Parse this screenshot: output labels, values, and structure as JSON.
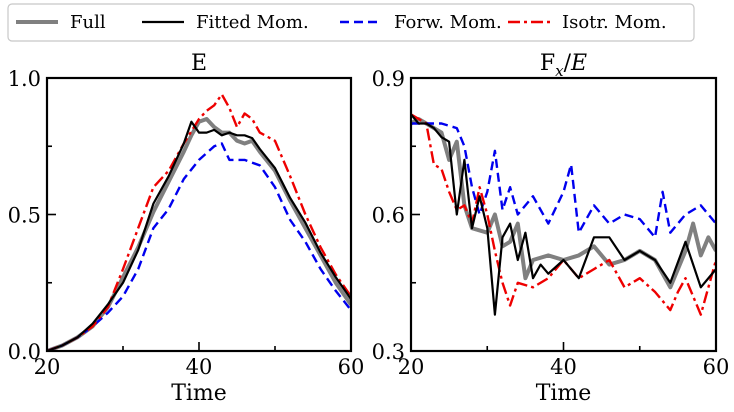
{
  "legend": {
    "items": [
      {
        "label": "Full",
        "color": "#808080",
        "dash": "solid"
      },
      {
        "label": "Fitted Mom.",
        "color": "#000000",
        "dash": "solid"
      },
      {
        "label": "Forw. Mom.",
        "color": "#0000ee",
        "dash": "dashed"
      },
      {
        "label": "Isotr. Mom.",
        "color": "#ee0000",
        "dash": "dashdot"
      }
    ]
  },
  "chart_data": [
    {
      "type": "line",
      "title": "E",
      "xlabel": "Time",
      "ylabel": "",
      "xlim": [
        20,
        60
      ],
      "ylim": [
        0.0,
        1.0
      ],
      "xticks": [
        20,
        40,
        60
      ],
      "xtick_labels": [
        "20",
        "40",
        "60"
      ],
      "yticks": [
        0.0,
        0.5,
        1.0
      ],
      "ytick_labels": [
        "0.0",
        "0.5",
        "1.0"
      ],
      "series": [
        {
          "name": "Full",
          "x": [
            20,
            22,
            24,
            26,
            28,
            30,
            32,
            34,
            36,
            38,
            39,
            40,
            41,
            42,
            43,
            44,
            45,
            46,
            47,
            48,
            50,
            52,
            54,
            56,
            58,
            60
          ],
          "y": [
            0.0,
            0.02,
            0.05,
            0.09,
            0.16,
            0.27,
            0.38,
            0.51,
            0.62,
            0.73,
            0.79,
            0.84,
            0.85,
            0.82,
            0.8,
            0.8,
            0.77,
            0.76,
            0.77,
            0.73,
            0.66,
            0.55,
            0.45,
            0.35,
            0.25,
            0.17
          ]
        },
        {
          "name": "Fitted Mom.",
          "x": [
            20,
            22,
            24,
            26,
            28,
            30,
            32,
            34,
            36,
            38,
            39,
            40,
            41,
            42,
            43,
            44,
            45,
            46,
            47,
            48,
            50,
            52,
            54,
            56,
            58,
            60
          ],
          "y": [
            0.0,
            0.02,
            0.05,
            0.1,
            0.17,
            0.25,
            0.37,
            0.54,
            0.64,
            0.76,
            0.84,
            0.8,
            0.8,
            0.81,
            0.79,
            0.8,
            0.79,
            0.79,
            0.78,
            0.74,
            0.67,
            0.56,
            0.47,
            0.36,
            0.27,
            0.19
          ]
        },
        {
          "name": "Forw. Mom.",
          "x": [
            20,
            22,
            24,
            26,
            28,
            30,
            32,
            34,
            36,
            38,
            40,
            42,
            43,
            44,
            46,
            48,
            50,
            52,
            54,
            56,
            58,
            60
          ],
          "y": [
            0.0,
            0.02,
            0.05,
            0.09,
            0.14,
            0.2,
            0.3,
            0.45,
            0.52,
            0.63,
            0.7,
            0.75,
            0.76,
            0.7,
            0.7,
            0.68,
            0.6,
            0.48,
            0.4,
            0.3,
            0.22,
            0.15
          ]
        },
        {
          "name": "Isotr. Mom.",
          "x": [
            20,
            22,
            24,
            26,
            28,
            30,
            32,
            34,
            36,
            38,
            40,
            41,
            42,
            43,
            44,
            45,
            46,
            47,
            48,
            50,
            52,
            54,
            56,
            58,
            60
          ],
          "y": [
            0.0,
            0.02,
            0.05,
            0.09,
            0.16,
            0.3,
            0.45,
            0.6,
            0.66,
            0.76,
            0.85,
            0.88,
            0.9,
            0.94,
            0.89,
            0.82,
            0.87,
            0.85,
            0.8,
            0.77,
            0.64,
            0.5,
            0.38,
            0.28,
            0.2
          ]
        }
      ]
    },
    {
      "type": "line",
      "title": "F_x/E",
      "xlabel": "Time",
      "ylabel": "",
      "xlim": [
        20,
        60
      ],
      "ylim": [
        0.3,
        0.9
      ],
      "xticks": [
        20,
        40,
        60
      ],
      "xtick_labels": [
        "20",
        "40",
        "60"
      ],
      "yticks": [
        0.3,
        0.6,
        0.9
      ],
      "ytick_labels": [
        "0.3",
        "0.6",
        "0.9"
      ],
      "series": [
        {
          "name": "Full",
          "x": [
            20,
            21,
            22,
            23,
            24,
            25,
            26,
            27,
            28,
            30,
            31,
            32,
            33,
            34,
            35,
            36,
            38,
            40,
            42,
            44,
            46,
            48,
            50,
            52,
            54,
            56,
            57,
            58,
            59,
            60
          ],
          "y": [
            0.8,
            0.81,
            0.8,
            0.79,
            0.78,
            0.72,
            0.76,
            0.62,
            0.57,
            0.56,
            0.6,
            0.53,
            0.54,
            0.58,
            0.46,
            0.5,
            0.51,
            0.5,
            0.51,
            0.53,
            0.49,
            0.5,
            0.52,
            0.5,
            0.44,
            0.52,
            0.58,
            0.51,
            0.55,
            0.52
          ]
        },
        {
          "name": "Fitted Mom.",
          "x": [
            20,
            21,
            22,
            23,
            24,
            25,
            26,
            27,
            28,
            29,
            30,
            31,
            32,
            33,
            34,
            35,
            36,
            37,
            38,
            40,
            42,
            44,
            46,
            48,
            50,
            52,
            54,
            56,
            58,
            60
          ],
          "y": [
            0.82,
            0.8,
            0.8,
            0.79,
            0.77,
            0.76,
            0.6,
            0.72,
            0.57,
            0.64,
            0.57,
            0.38,
            0.55,
            0.58,
            0.5,
            0.56,
            0.46,
            0.49,
            0.47,
            0.5,
            0.46,
            0.55,
            0.55,
            0.5,
            0.52,
            0.5,
            0.45,
            0.54,
            0.44,
            0.48
          ]
        },
        {
          "name": "Forw. Mom.",
          "x": [
            20,
            22,
            24,
            26,
            27,
            28,
            29,
            30,
            31,
            32,
            33,
            34,
            36,
            38,
            40,
            41,
            42,
            44,
            46,
            48,
            50,
            52,
            53,
            54,
            56,
            58,
            60
          ],
          "y": [
            0.8,
            0.8,
            0.8,
            0.79,
            0.75,
            0.66,
            0.6,
            0.65,
            0.74,
            0.61,
            0.66,
            0.6,
            0.64,
            0.58,
            0.65,
            0.71,
            0.56,
            0.62,
            0.58,
            0.6,
            0.59,
            0.55,
            0.65,
            0.56,
            0.6,
            0.62,
            0.58
          ]
        },
        {
          "name": "Isotr. Mom.",
          "x": [
            20,
            22,
            23,
            24,
            25,
            26,
            27,
            28,
            29,
            30,
            31,
            32,
            33,
            34,
            36,
            38,
            40,
            42,
            44,
            46,
            48,
            50,
            52,
            54,
            55,
            56,
            58,
            60
          ],
          "y": [
            0.82,
            0.8,
            0.71,
            0.7,
            0.65,
            0.61,
            0.62,
            0.58,
            0.66,
            0.6,
            0.52,
            0.45,
            0.4,
            0.45,
            0.44,
            0.46,
            0.5,
            0.46,
            0.48,
            0.5,
            0.44,
            0.46,
            0.43,
            0.39,
            0.43,
            0.46,
            0.38,
            0.5
          ]
        }
      ]
    }
  ]
}
